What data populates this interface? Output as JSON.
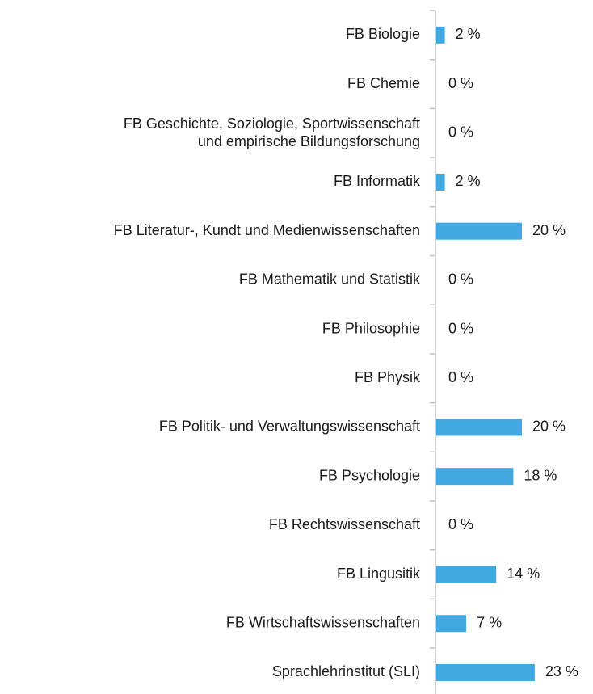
{
  "chart_data": {
    "type": "bar",
    "orientation": "horizontal",
    "categories": [
      "FB Biologie",
      "FB Chemie",
      "FB Geschichte, Soziologie, Sportwissenschaft\nund empirische Bildungsforschung",
      "FB Informatik",
      "FB Literatur-, Kundt und Medienwissenschaften",
      "FB Mathematik und Statistik",
      "FB Philosophie",
      "FB Physik",
      "FB Politik- und Verwaltungswissenschaft",
      "FB Psychologie",
      "FB Rechtswissenschaft",
      "FB Lingusitik",
      "FB Wirtschaftswissenschaften",
      "Sprachlehrinstitut (SLI)"
    ],
    "values": [
      2,
      0,
      0,
      2,
      20,
      0,
      0,
      0,
      20,
      18,
      0,
      14,
      7,
      23
    ],
    "value_labels": [
      "2 %",
      "0 %",
      "0 %",
      "2 %",
      "20 %",
      "0 %",
      "0 %",
      "0 %",
      "20 %",
      "18 %",
      "0 %",
      "14 %",
      "7 %",
      "23 %"
    ],
    "color": "#41a8e0"
  }
}
